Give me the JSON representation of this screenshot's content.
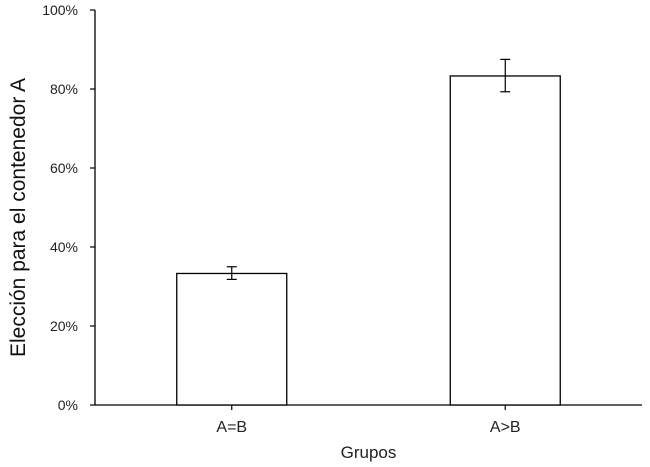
{
  "chart_data": {
    "type": "bar",
    "categories": [
      "A=B",
      "A>B"
    ],
    "values": [
      33.3,
      83.3
    ],
    "error": [
      {
        "low": 31.8,
        "high": 35.0
      },
      {
        "low": 79.3,
        "high": 87.5
      }
    ],
    "xlabel": "Grupos",
    "ylabel": "Elección para el contenedor A",
    "ylim": [
      0,
      100
    ],
    "yticks": [
      0,
      20,
      40,
      60,
      80,
      100
    ],
    "ytick_labels": [
      "0%",
      "20%",
      "40%",
      "60%",
      "80%",
      "100%"
    ],
    "grid": false,
    "bar_fill": "#ffffff",
    "bar_stroke": "#000000"
  }
}
